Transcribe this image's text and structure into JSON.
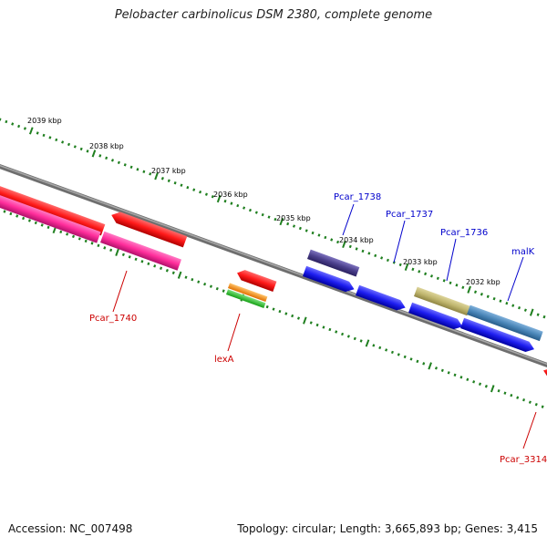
{
  "title": "Pelobacter carbinolicus DSM 2380, complete genome",
  "footer": {
    "accession": "Accession: NC_007498",
    "topology": "Topology: circular; Length: 3,665,893 bp; Genes: 3,415"
  },
  "scale_labels": [
    "2039 kbp",
    "2038 kbp",
    "2037 kbp",
    "2036 kbp",
    "2035 kbp",
    "2034 kbp",
    "2033 kbp",
    "2032 kbp"
  ],
  "gene_labels": {
    "Pcar_1740": "Pcar_1740",
    "lexA": "lexA",
    "Pcar_1738": "Pcar_1738",
    "Pcar_1737": "Pcar_1737",
    "Pcar_1736": "Pcar_1736",
    "malK": "malK",
    "Pcar_3314": "Pcar_3314"
  },
  "colors": {
    "red": "#ff1a1a",
    "pink": "#ff2d9b",
    "blue": "#1e1ef0",
    "navy": "#4b3f8c",
    "olive": "#bfb56e",
    "steel": "#4a86b8",
    "orange": "#ff9a1a",
    "green": "#33cc33",
    "tick": "#1f7f1f",
    "backbone": "#808080",
    "label_blue": "#0000cc",
    "label_red": "#cc0000"
  }
}
